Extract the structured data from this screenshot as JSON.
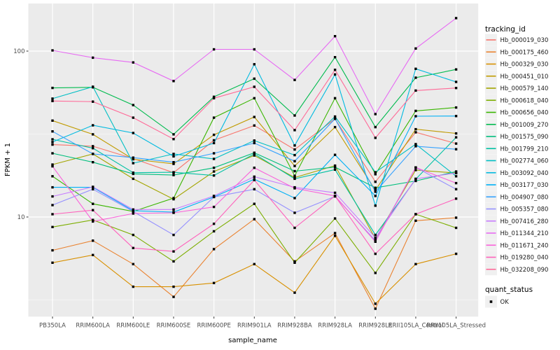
{
  "style": {
    "panel_bg": "#EBEBEB",
    "grid_color": "#FFFFFF",
    "axis_text_color": "#4D4D4D",
    "title_color": "#000000",
    "marker_color": "#000000",
    "legend_key_bg": "#F0F0F0"
  },
  "axes": {
    "x_title": "sample_name",
    "y_title": "FPKM + 1",
    "y_tick_labels": [
      "100",
      "10"
    ]
  },
  "legend": {
    "title": "tracking_id"
  },
  "legend2": {
    "title": "quant_status",
    "items": [
      {
        "label": "OK"
      }
    ]
  },
  "chart_data": {
    "type": "line",
    "title": "",
    "xlabel": "sample_name",
    "ylabel": "FPKM + 1",
    "y_scale": "log10",
    "y_major_ticks": [
      10,
      100
    ],
    "y_minor_ticks": [
      3.162,
      31.62
    ],
    "ylim_log": [
      2.44,
      193
    ],
    "grid": true,
    "legend_position": "right",
    "point_shape": "filled-square",
    "categories": [
      "PB350LA",
      "RRIM600LA",
      "RRIM600LE",
      "RRIM600SE",
      "RRIM600PE",
      "RRIM901LA",
      "RRIM928BA",
      "RRIM928LA",
      "RRIM928LE",
      "RRII105LA_Control",
      "RRII105LA_Stressed"
    ],
    "series": [
      {
        "name": "Hb_000019_030",
        "color": "#F8766D",
        "values": [
          27.3,
          26.7,
          22.5,
          18.5,
          29.0,
          35.6,
          25.5,
          39.1,
          16.3,
          32.4,
          27.7
        ]
      },
      {
        "name": "Hb_000175_460",
        "color": "#EA8331",
        "values": [
          6.3,
          7.2,
          5.2,
          3.3,
          6.4,
          9.7,
          5.4,
          8.0,
          2.8,
          9.5,
          9.9
        ]
      },
      {
        "name": "Hb_000329_030",
        "color": "#D89000",
        "values": [
          5.3,
          5.9,
          3.8,
          3.8,
          4.0,
          5.2,
          3.5,
          7.7,
          3.0,
          5.2,
          6.0
        ]
      },
      {
        "name": "Hb_000451_010",
        "color": "#C09B00",
        "values": [
          38.1,
          31.5,
          22.3,
          20.9,
          31.3,
          40.1,
          20.3,
          34.8,
          14.5,
          33.8,
          31.9
        ]
      },
      {
        "name": "Hb_000579_140",
        "color": "#A3A500",
        "values": [
          20.7,
          24.0,
          17.0,
          12.8,
          18.8,
          23.5,
          17.3,
          20.4,
          7.4,
          19.2,
          18.4
        ]
      },
      {
        "name": "Hb_000618_040",
        "color": "#7CAE00",
        "values": [
          8.7,
          9.6,
          7.8,
          5.4,
          8.2,
          12.0,
          5.3,
          9.8,
          4.6,
          10.4,
          8.6
        ]
      },
      {
        "name": "Hb_000656_040",
        "color": "#39B600",
        "values": [
          17.6,
          12.0,
          10.8,
          13.0,
          39.7,
          52.0,
          17.7,
          52.0,
          18.1,
          43.6,
          45.7
        ]
      },
      {
        "name": "Hb_001009_270",
        "color": "#00BB4E",
        "values": [
          60.0,
          60.5,
          47.3,
          31.5,
          53.0,
          68.2,
          40.9,
          91.9,
          34.8,
          69.1,
          77.5
        ]
      },
      {
        "name": "Hb_001575_090",
        "color": "#00BF7D",
        "values": [
          24.2,
          21.4,
          18.2,
          17.9,
          19.8,
          24.4,
          18.9,
          20.0,
          15.0,
          16.5,
          18.8
        ]
      },
      {
        "name": "Hb_001799_210",
        "color": "#00C1A3",
        "values": [
          29.4,
          26.0,
          18.5,
          18.6,
          17.8,
          24.0,
          17.0,
          19.3,
          7.8,
          16.9,
          30.2
        ]
      },
      {
        "name": "Hb_002774_060",
        "color": "#00BFC4",
        "values": [
          51.7,
          61.0,
          21.1,
          24.0,
          22.4,
          28.9,
          23.6,
          40.3,
          18.6,
          27.5,
          17.6
        ]
      },
      {
        "name": "Hb_003092_040",
        "color": "#00BAE0",
        "values": [
          28.3,
          35.7,
          32.1,
          23.2,
          27.9,
          83.3,
          27.0,
          72.3,
          11.7,
          78.2,
          65.2
        ]
      },
      {
        "name": "Hb_003177_030",
        "color": "#00B0F6",
        "values": [
          15.1,
          15.1,
          10.9,
          10.7,
          13.2,
          16.9,
          13.0,
          23.7,
          13.4,
          40.5,
          40.6
        ]
      },
      {
        "name": "Hb_004907_080",
        "color": "#35A2FF",
        "values": [
          32.8,
          24.0,
          22.8,
          21.4,
          24.2,
          27.9,
          21.7,
          39.1,
          14.2,
          26.7,
          25.6
        ]
      },
      {
        "name": "Hb_005357_080",
        "color": "#9590FF",
        "values": [
          11.8,
          14.7,
          10.8,
          7.8,
          13.2,
          14.7,
          10.6,
          13.3,
          7.2,
          19.9,
          14.7
        ]
      },
      {
        "name": "Hb_007416_280",
        "color": "#C77CFF",
        "values": [
          13.3,
          15.2,
          11.1,
          11.1,
          13.4,
          17.5,
          15.1,
          14.0,
          7.5,
          17.0,
          18.4
        ]
      },
      {
        "name": "Hb_011344_210",
        "color": "#E76BF3",
        "values": [
          101.0,
          91.3,
          85.4,
          66.0,
          102.5,
          102.5,
          67.0,
          123.0,
          41.7,
          103.7,
          158.0
        ]
      },
      {
        "name": "Hb_011671_240",
        "color": "#FA62DB",
        "values": [
          20.2,
          9.4,
          10.5,
          10.6,
          11.5,
          19.8,
          14.9,
          13.4,
          7.1,
          19.9,
          16.0
        ]
      },
      {
        "name": "Hb_019280_040",
        "color": "#FF62BC",
        "values": [
          10.4,
          11.0,
          6.5,
          6.2,
          9.1,
          16.7,
          8.6,
          13.4,
          6.0,
          10.4,
          12.9
        ]
      },
      {
        "name": "Hb_032208_090",
        "color": "#FF6A98",
        "values": [
          50.0,
          49.6,
          39.7,
          29.5,
          52.0,
          60.9,
          33.4,
          77.1,
          30.0,
          57.8,
          59.9
        ]
      }
    ]
  }
}
